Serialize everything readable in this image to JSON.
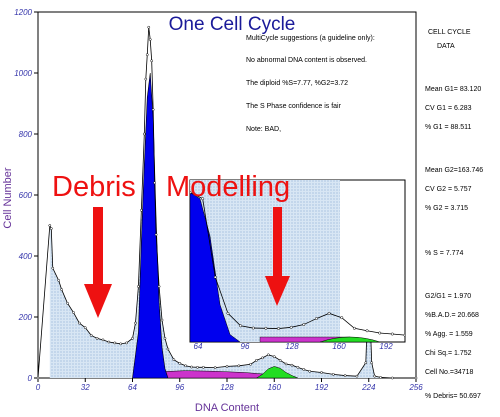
{
  "chart_data": {
    "type": "area",
    "title": "One Cell Cycle",
    "xlabel": "DNA Content",
    "ylabel": "Cell Number",
    "xlim": [
      0,
      256
    ],
    "ylim": [
      0,
      1200
    ],
    "xticks": [
      0,
      32,
      64,
      96,
      128,
      160,
      192,
      224,
      256
    ],
    "yticks": [
      0,
      200,
      400,
      600,
      800,
      1000,
      1200
    ],
    "histogram": {
      "x": [
        0,
        8,
        9,
        10,
        14,
        16,
        20,
        24,
        28,
        32,
        36,
        40,
        44,
        48,
        52,
        56,
        60,
        64,
        66,
        68,
        70,
        72,
        73,
        74,
        75,
        76,
        77,
        78,
        79,
        80,
        82,
        84,
        86,
        88,
        92,
        96,
        100,
        104,
        108,
        112,
        120,
        128,
        136,
        144,
        148,
        152,
        156,
        160,
        164,
        168,
        172,
        176,
        180,
        184,
        192,
        200,
        208,
        216,
        222,
        224,
        226,
        228,
        232,
        240,
        256
      ],
      "y": [
        0,
        500,
        490,
        360,
        320,
        290,
        245,
        215,
        180,
        165,
        140,
        130,
        125,
        118,
        115,
        112,
        115,
        130,
        180,
        300,
        550,
        800,
        980,
        1060,
        1150,
        1110,
        1040,
        880,
        640,
        470,
        300,
        190,
        130,
        95,
        60,
        48,
        40,
        36,
        35,
        35,
        34,
        38,
        40,
        45,
        58,
        66,
        76,
        70,
        58,
        46,
        42,
        35,
        28,
        22,
        18,
        12,
        8,
        6,
        50,
        330,
        50,
        6,
        2,
        0,
        0
      ]
    },
    "g1_peak": {
      "x": [
        64,
        68,
        70,
        72,
        74,
        76,
        78,
        80,
        82,
        84,
        86,
        88
      ],
      "y": [
        0,
        150,
        450,
        700,
        920,
        1000,
        850,
        520,
        250,
        100,
        30,
        0
      ]
    },
    "g2_peak": {
      "x": [
        148,
        152,
        156,
        160,
        164,
        168,
        172,
        176
      ],
      "y": [
        0,
        12,
        30,
        38,
        32,
        18,
        8,
        0
      ]
    },
    "s_phase": {
      "x": [
        80,
        100,
        120,
        140,
        160,
        170
      ],
      "y": [
        20,
        24,
        22,
        18,
        10,
        0
      ]
    },
    "inset": {
      "xticks": [
        "64",
        "96",
        "128",
        "160",
        "192"
      ],
      "histogram_y": [
        1200,
        1150,
        520,
        230,
        130,
        112,
        110,
        108,
        118,
        140,
        188,
        230,
        195,
        110,
        90,
        72,
        64,
        55
      ],
      "peak_y": [
        1200,
        1150,
        850,
        300,
        60,
        0
      ]
    },
    "annotations": [
      "Debris",
      "Modelling"
    ]
  },
  "notes": {
    "line1": "MultiCycle suggestions (a guideline only):",
    "line2": "No abnormal DNA content is observed.",
    "line3": "The diploid %S=7.77, %G2=3.72",
    "line4": "The S Phase confidence is fair",
    "line5": "Note: BAD,"
  },
  "stats": {
    "header1": "CELL  CYCLE",
    "header2": "DATA",
    "mean_g1": "Mean G1=  83.120",
    "cv_g1": "CV G1 =  6.283",
    "pct_g1": "% G1 = 88.511",
    "mean_g2": "Mean G2=163.746",
    "cv_g2": "CV G2 =  5.757",
    "pct_g2": "% G2 =  3.715",
    "pct_s": "% S  =  7.774",
    "g2g1": "G2/G1 =  1.970",
    "bad": "%B.A.D.= 20.668",
    "agg": "% Agg. =  1.559",
    "chisq": "Chi Sq.=  1.752",
    "cellno": "Cell No.=34718",
    "debris": "% Debris= 50.697"
  },
  "colors": {
    "g1": "#0000ee",
    "s_phase": "#cc33cc",
    "g2": "#22dd22",
    "debris": "#c8dcf0",
    "arrow": "#ee1111",
    "title": "#1a1a99",
    "s_note": "#999900"
  }
}
